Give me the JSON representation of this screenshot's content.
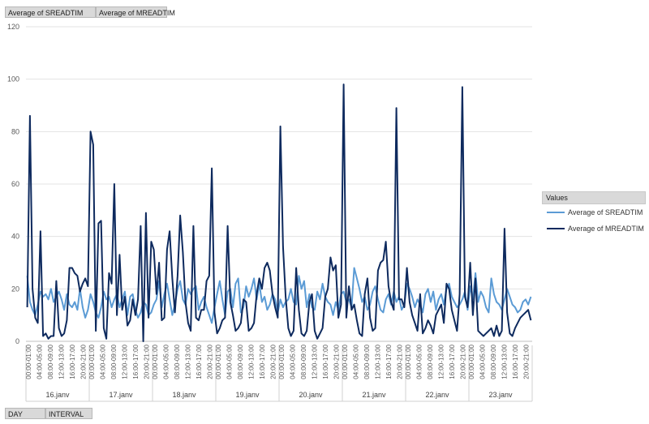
{
  "filter_chips": [
    {
      "label": "Average of SREADTIM"
    },
    {
      "label": "Average of MREADTIM"
    }
  ],
  "row_chips": [
    {
      "label": "DAY"
    },
    {
      "label": "INTERVAL"
    }
  ],
  "legend": {
    "title": "Values",
    "items": [
      {
        "label": "Average of SREADTIM",
        "color": "#5b9bd5"
      },
      {
        "label": "Average of MREADTIM",
        "color": "#0e2a5e"
      }
    ]
  },
  "chart_data": {
    "type": "line",
    "ylim": [
      0,
      120
    ],
    "yticks": [
      0,
      20,
      40,
      60,
      80,
      100,
      120
    ],
    "grid": true,
    "legend_position": "right",
    "days": [
      "16.janv",
      "17.janv",
      "18.janv",
      "19.janv",
      "20.janv",
      "21.janv",
      "22.janv",
      "23.janv"
    ],
    "interval_labels": [
      "00:00-01:00",
      "04:00-05:00",
      "08:00-09:00",
      "12:00-13:00",
      "16:00-17:00",
      "20:00-21:00"
    ],
    "points_per_day": 24,
    "series": [
      {
        "name": "Average of SREADTIM",
        "color": "#5b9bd5",
        "values": [
          25,
          15,
          12,
          10,
          14,
          19,
          17,
          18,
          16,
          20,
          15,
          17,
          19,
          16,
          12,
          18,
          14,
          13,
          15,
          12,
          20,
          13,
          9,
          12,
          18,
          15,
          11,
          9,
          13,
          19,
          16,
          17,
          13,
          16,
          18,
          13,
          16,
          19,
          10,
          17,
          18,
          12,
          9,
          11,
          15,
          14,
          10,
          11,
          14,
          16,
          23,
          13,
          18,
          22,
          16,
          10,
          14,
          20,
          23,
          16,
          14,
          20,
          18,
          20,
          21,
          12,
          15,
          17,
          13,
          10,
          7,
          13,
          18,
          23,
          16,
          10,
          19,
          20,
          13,
          22,
          24,
          11,
          13,
          21,
          17,
          20,
          24,
          16,
          22,
          15,
          17,
          12,
          14,
          18,
          16,
          11,
          16,
          13,
          15,
          16,
          20,
          15,
          14,
          25,
          20,
          23,
          13,
          18,
          13,
          12,
          19,
          16,
          22,
          17,
          15,
          14,
          10,
          15,
          12,
          18,
          19,
          15,
          16,
          13,
          28,
          24,
          20,
          15,
          17,
          12,
          14,
          19,
          21,
          16,
          12,
          11,
          16,
          18,
          14,
          19,
          15,
          17,
          12,
          14,
          22,
          20,
          17,
          13,
          16,
          14,
          11,
          18,
          20,
          15,
          19,
          12,
          16,
          18,
          14,
          20,
          22,
          17,
          15,
          13,
          14,
          16,
          19,
          12,
          21,
          16,
          26,
          15,
          19,
          17,
          13,
          11,
          24,
          18,
          15,
          14,
          12,
          16,
          20,
          17,
          14,
          13,
          11,
          12,
          15,
          16,
          14,
          17
        ]
      },
      {
        "name": "Average of MREADTIM",
        "color": "#0e2a5e",
        "values": [
          13,
          86,
          20,
          9,
          7,
          42,
          2,
          3,
          1,
          2,
          2,
          23,
          5,
          2,
          3,
          8,
          28,
          28,
          26,
          25,
          19,
          22,
          24,
          21,
          80,
          75,
          4,
          45,
          46,
          5,
          1,
          26,
          22,
          60,
          10,
          33,
          12,
          17,
          6,
          8,
          16,
          10,
          16,
          44,
          0,
          49,
          9,
          38,
          35,
          18,
          30,
          8,
          9,
          35,
          42,
          24,
          11,
          25,
          48,
          34,
          15,
          7,
          4,
          44,
          9,
          8,
          12,
          12,
          23,
          25,
          66,
          11,
          3,
          5,
          8,
          9,
          44,
          15,
          10,
          4,
          5,
          7,
          16,
          15,
          4,
          5,
          7,
          18,
          24,
          20,
          28,
          30,
          27,
          18,
          13,
          9,
          82,
          36,
          17,
          5,
          2,
          4,
          28,
          12,
          3,
          2,
          4,
          15,
          18,
          4,
          1,
          3,
          5,
          17,
          20,
          32,
          27,
          29,
          9,
          14,
          98,
          9,
          21,
          12,
          14,
          8,
          3,
          2,
          18,
          24,
          9,
          4,
          5,
          27,
          30,
          31,
          38,
          21,
          15,
          12,
          89,
          16,
          16,
          13,
          28,
          15,
          10,
          7,
          4,
          18,
          3,
          5,
          8,
          6,
          3,
          10,
          12,
          14,
          7,
          22,
          20,
          12,
          8,
          4,
          18,
          97,
          17,
          13,
          30,
          10,
          24,
          4,
          3,
          2,
          3,
          4,
          5,
          2,
          6,
          2,
          4,
          43,
          11,
          3,
          2,
          5,
          7,
          9,
          10,
          11,
          12,
          8
        ]
      }
    ]
  }
}
